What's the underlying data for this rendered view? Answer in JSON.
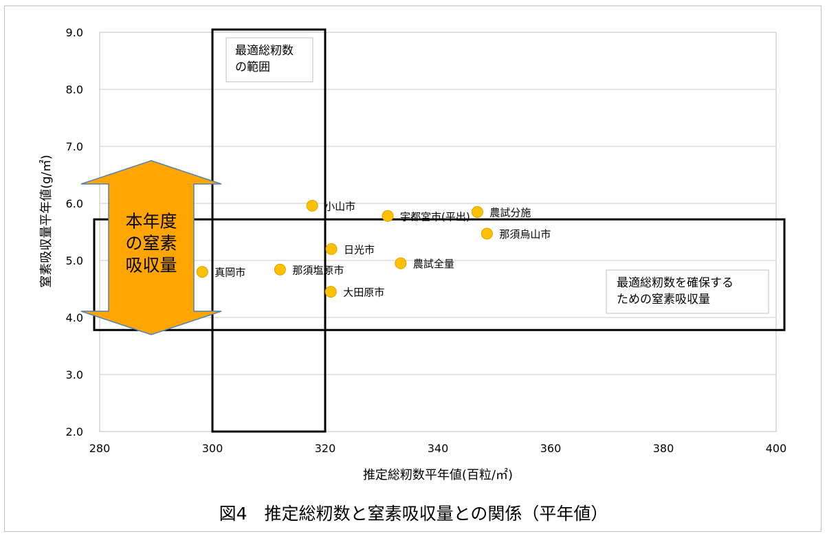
{
  "caption": "図4　推定総籾数と窒素吸収量との関係（平年値）",
  "chart_data": {
    "type": "scatter",
    "xlabel": "推定総籾数平年値(百粒/㎡)",
    "ylabel": "窒素吸収量平年値(g/㎡)",
    "xlim": [
      280,
      400
    ],
    "ylim": [
      2.0,
      9.0
    ],
    "x_ticks": [
      "280",
      "300",
      "320",
      "340",
      "360",
      "380",
      "400"
    ],
    "y_ticks": [
      "2.0",
      "3.0",
      "4.0",
      "5.0",
      "6.0",
      "7.0",
      "8.0",
      "9.0"
    ],
    "grid": "horizontal",
    "marker_color": "#FFC000",
    "marker_edge": "#E0A000",
    "points": [
      {
        "label": "真岡市",
        "x": 298.2,
        "y": 4.8
      },
      {
        "label": "那須塩原市",
        "x": 312.0,
        "y": 4.84
      },
      {
        "label": "小山市",
        "x": 317.7,
        "y": 5.96
      },
      {
        "label": "日光市",
        "x": 321.1,
        "y": 5.2
      },
      {
        "label": "大田原市",
        "x": 321.0,
        "y": 4.45
      },
      {
        "label": "宇都宮市(平出)",
        "x": 331.1,
        "y": 5.78
      },
      {
        "label": "農試全量",
        "x": 333.4,
        "y": 4.95
      },
      {
        "label": "農試分施",
        "x": 347.0,
        "y": 5.85
      },
      {
        "label": "那須烏山市",
        "x": 348.7,
        "y": 5.47
      }
    ],
    "annotations": {
      "optimal_range_label": "最適総籾数\nの範囲",
      "optimal_range_x": [
        300,
        320
      ],
      "uptake_box_label": "最適総籾数を確保する\nための窒素吸収量",
      "uptake_box_y": [
        3.78,
        5.72
      ],
      "arrow_label": "本年度\nの窒素\n吸収量",
      "arrow_y": [
        3.7,
        6.75
      ],
      "arrow_fill": "#FFA500"
    }
  }
}
